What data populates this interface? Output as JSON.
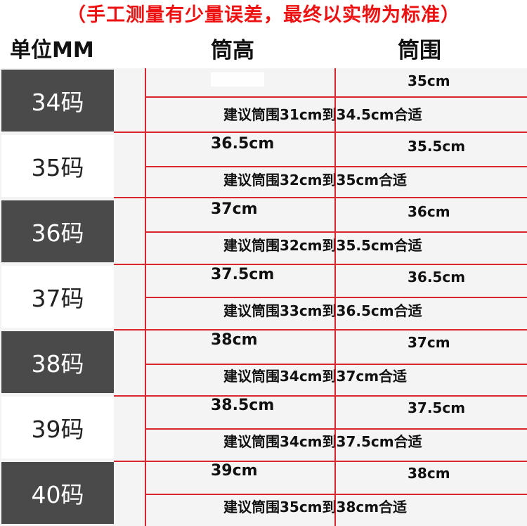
{
  "notice": "（手工测量有少量误差，最终以实物为标准）",
  "headers": {
    "unit": "单位MM",
    "height": "筒高",
    "circumference": "筒围"
  },
  "rows": [
    {
      "size": "34码",
      "height": "",
      "circumference": "35cm",
      "tip": "建议筒围31cm到34.5cm合适"
    },
    {
      "size": "35码",
      "height": "36.5cm",
      "circumference": "35.5cm",
      "tip": "建议筒围32cm到35cm合适"
    },
    {
      "size": "36码",
      "height": "37cm",
      "circumference": "36cm",
      "tip": "建议筒围32cm到35.5cm合适"
    },
    {
      "size": "37码",
      "height": "37.5cm",
      "circumference": "36.5cm",
      "tip": "建议筒围33cm到36.5cm合适"
    },
    {
      "size": "38码",
      "height": "38cm",
      "circumference": "37cm",
      "tip": "建议筒围34cm到37cm合适"
    },
    {
      "size": "39码",
      "height": "38.5cm",
      "circumference": "37.5cm",
      "tip": "建议筒围34cm到37.5cm合适"
    },
    {
      "size": "40码",
      "height": "39cm",
      "circumference": "38cm",
      "tip": "建议筒围35cm到38cm合适"
    }
  ],
  "colors": {
    "notice": "#ee1111",
    "grid_line": "#d9262e",
    "dark_cell": "#4a4a4a"
  }
}
